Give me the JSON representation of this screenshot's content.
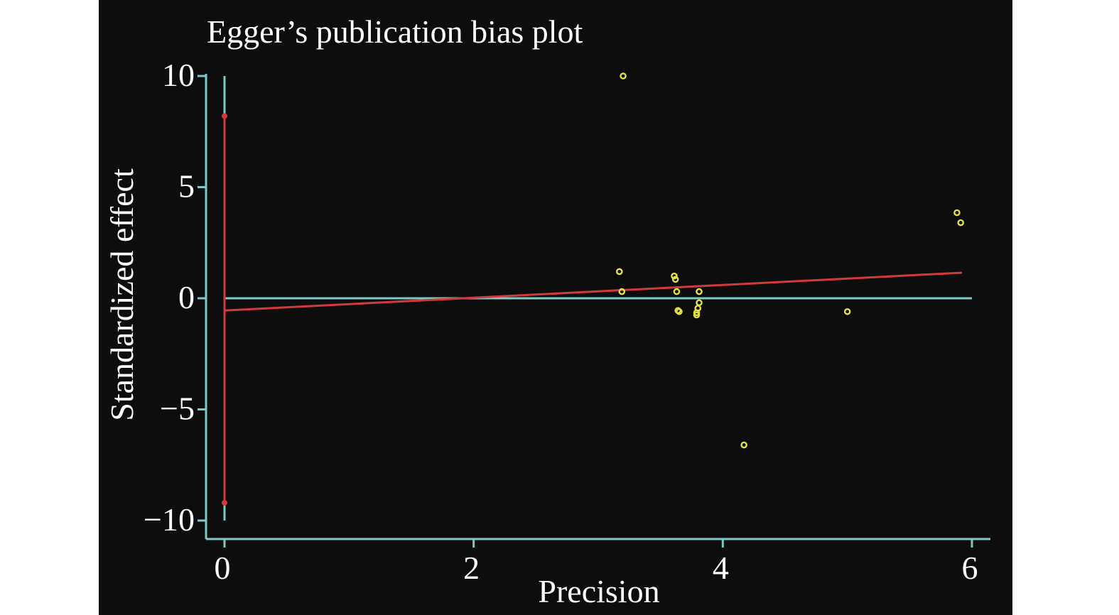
{
  "chart_data": {
    "type": "scatter",
    "title": "Egger’s publication bias plot",
    "xlabel": "Precision",
    "ylabel": "Standardized effect",
    "xlim": [
      0,
      6
    ],
    "ylim": [
      -10,
      10
    ],
    "x_ticks": [
      0,
      2,
      4,
      6
    ],
    "y_ticks": [
      10,
      5,
      0,
      -5,
      -10
    ],
    "y_tick_labels": [
      "10",
      "5",
      "0",
      "−5",
      "−10"
    ],
    "grid": false,
    "background": "#0d0d0d",
    "colors": {
      "axis": "#7fc8c8",
      "points": "#e0e04a",
      "regression": "#d23a3a",
      "text": "#ffffff"
    },
    "points": [
      {
        "x": 3.2,
        "y": 10.0
      },
      {
        "x": 3.17,
        "y": 1.2
      },
      {
        "x": 3.19,
        "y": 0.3
      },
      {
        "x": 3.61,
        "y": 1.0
      },
      {
        "x": 3.62,
        "y": 0.85
      },
      {
        "x": 3.63,
        "y": 0.3
      },
      {
        "x": 3.64,
        "y": -0.55
      },
      {
        "x": 3.65,
        "y": -0.6
      },
      {
        "x": 3.81,
        "y": 0.3
      },
      {
        "x": 3.81,
        "y": -0.2
      },
      {
        "x": 3.8,
        "y": -0.45
      },
      {
        "x": 3.79,
        "y": -0.65
      },
      {
        "x": 3.79,
        "y": -0.75
      },
      {
        "x": 4.17,
        "y": -6.6
      },
      {
        "x": 5.0,
        "y": -0.6
      },
      {
        "x": 5.88,
        "y": 3.85
      },
      {
        "x": 5.91,
        "y": 3.4
      }
    ],
    "regression_line": {
      "x": [
        0,
        5.92
      ],
      "y": [
        -0.55,
        1.15
      ]
    },
    "intercept_ci": {
      "x": 0,
      "upper": 8.2,
      "lower": -9.2
    }
  }
}
